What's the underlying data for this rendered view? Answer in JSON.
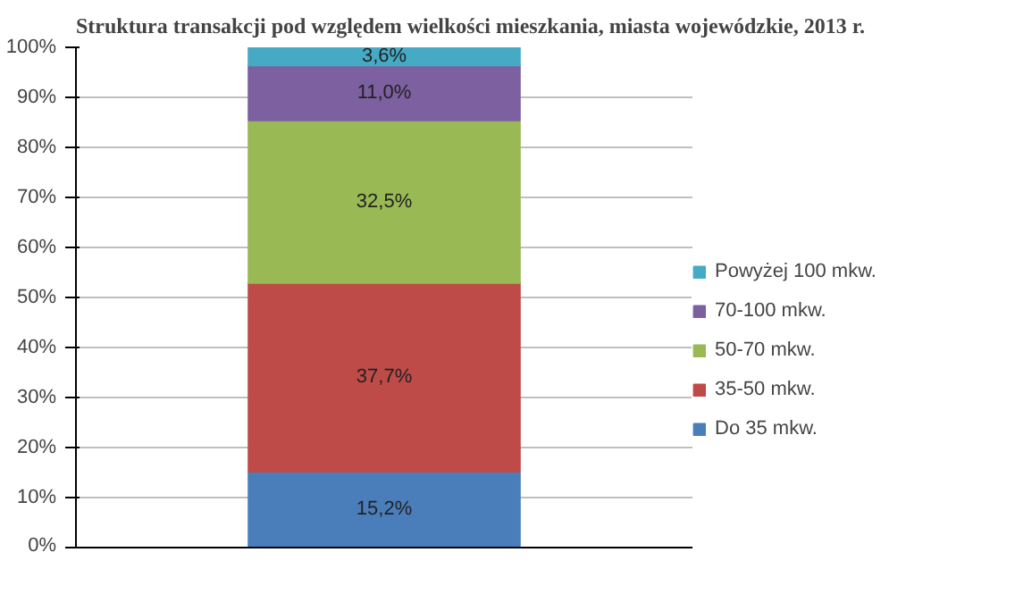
{
  "chart_data": {
    "type": "bar",
    "stacked": true,
    "title": "Struktura transakcji pod względem wielkości mieszkania, miasta wojewódzkie, 2013 r.",
    "categories": [
      null
    ],
    "series": [
      {
        "name": "Do 35 mkw.",
        "color": "#4a7ebb",
        "values": [
          15.2
        ],
        "value_labels": [
          "15,2%"
        ]
      },
      {
        "name": "35-50 mkw.",
        "color": "#be4b48",
        "values": [
          37.7
        ],
        "value_labels": [
          "37,7%"
        ]
      },
      {
        "name": "50-70 mkw.",
        "color": "#98b954",
        "values": [
          32.5
        ],
        "value_labels": [
          "32,5%"
        ]
      },
      {
        "name": "70-100 mkw.",
        "color": "#7d60a0",
        "values": [
          11.0
        ],
        "value_labels": [
          "11,0%"
        ]
      },
      {
        "name": "Powyżej 100 mkw.",
        "color": "#46aac5",
        "values": [
          3.6
        ],
        "value_labels": [
          "3,6%"
        ]
      }
    ],
    "ylim": [
      0,
      100
    ],
    "yticks": [
      {
        "value": 0,
        "label": "0%"
      },
      {
        "value": 10,
        "label": "10%"
      },
      {
        "value": 20,
        "label": "20%"
      },
      {
        "value": 30,
        "label": "30%"
      },
      {
        "value": 40,
        "label": "40%"
      },
      {
        "value": 50,
        "label": "50%"
      },
      {
        "value": 60,
        "label": "60%"
      },
      {
        "value": 70,
        "label": "70%"
      },
      {
        "value": 80,
        "label": "80%"
      },
      {
        "value": 90,
        "label": "90%"
      },
      {
        "value": 100,
        "label": "100%"
      }
    ],
    "grid": "y",
    "legend": "right"
  }
}
